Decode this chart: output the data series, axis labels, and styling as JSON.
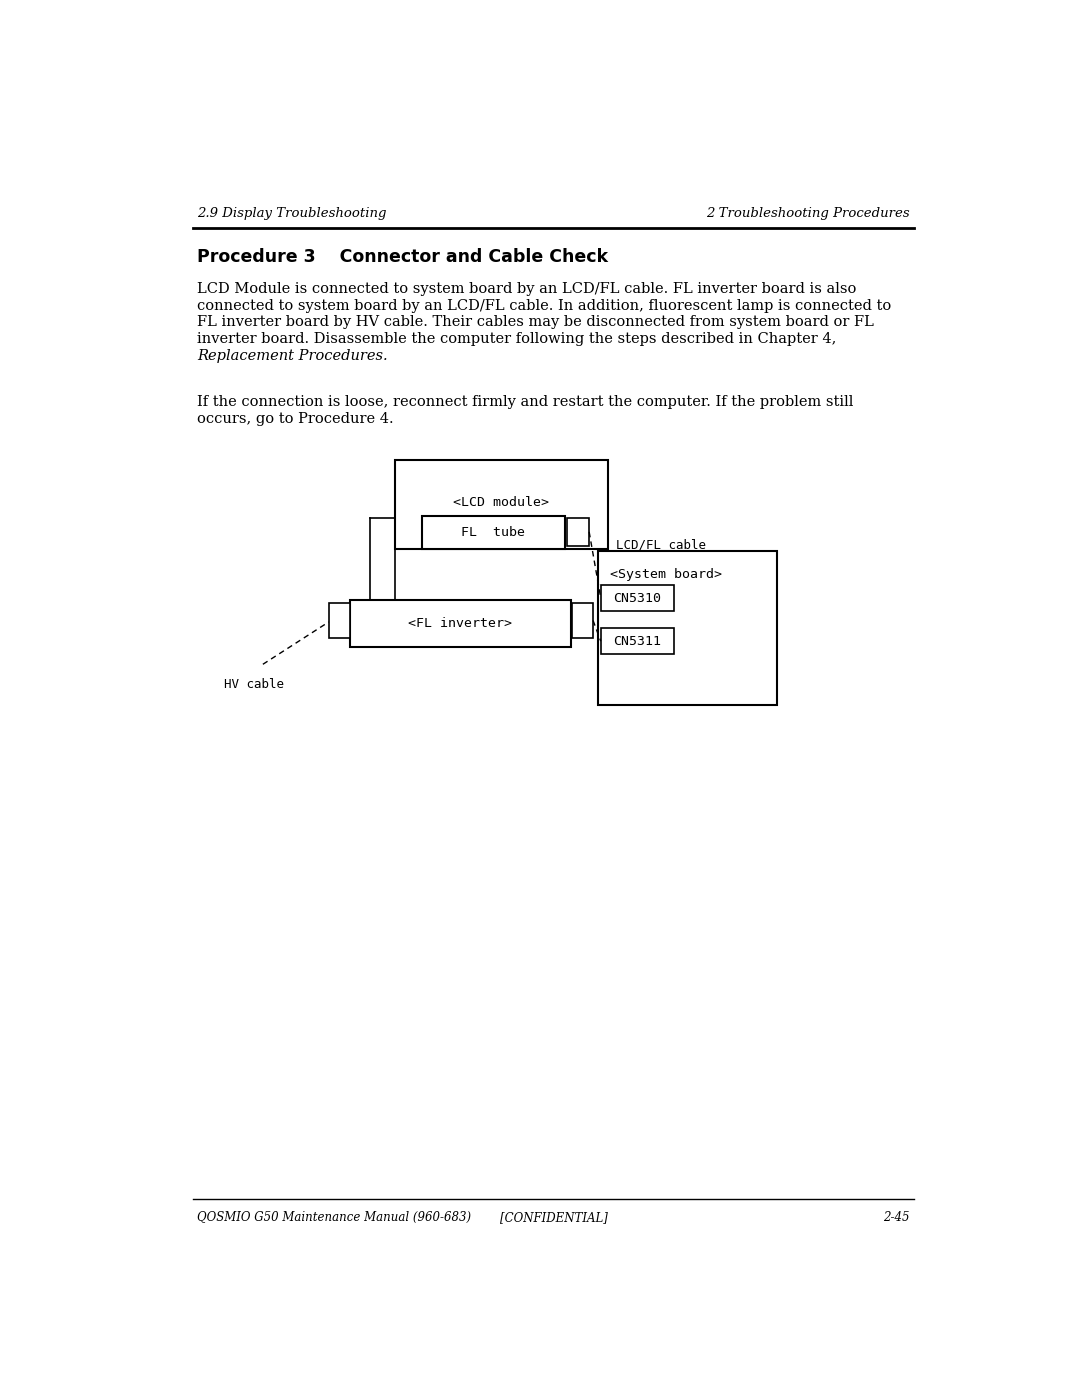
{
  "header_left": "2.9 Display Troubleshooting",
  "header_right": "2 Troubleshooting Procedures",
  "footer_left": "QOSMIO G50 Maintenance Manual (960-683)",
  "footer_center": "[CONFIDENTIAL]",
  "footer_right": "2-45",
  "section_title": "Procedure 3    Connector and Cable Check",
  "para1_lines": [
    "LCD Module is connected to system board by an LCD/FL cable. FL inverter board is also",
    "connected to system board by an LCD/FL cable. In addition, fluorescent lamp is connected to",
    "FL inverter board by HV cable. Their cables may be disconnected from system board or FL",
    "inverter board. Disassemble the computer following the steps described in Chapter 4,"
  ],
  "para1_italic": "Replacement Procedures.",
  "para2_lines": [
    "If the connection is loose, reconnect firmly and restart the computer. If the problem still",
    "occurs, go to Procedure 4."
  ],
  "bg_color": "#ffffff",
  "text_color": "#000000",
  "diagram": {
    "lcd_module_label": "<LCD module>",
    "fl_tube_label": "FL  tube",
    "fl_inverter_label": "<FL inverter>",
    "system_board_label": "<System board>",
    "cn5310_label": "CN5310",
    "cn5311_label": "CN5311",
    "hv_cable_label": "HV cable",
    "lcd_fl_cable_label": "LCD/FL cable"
  }
}
